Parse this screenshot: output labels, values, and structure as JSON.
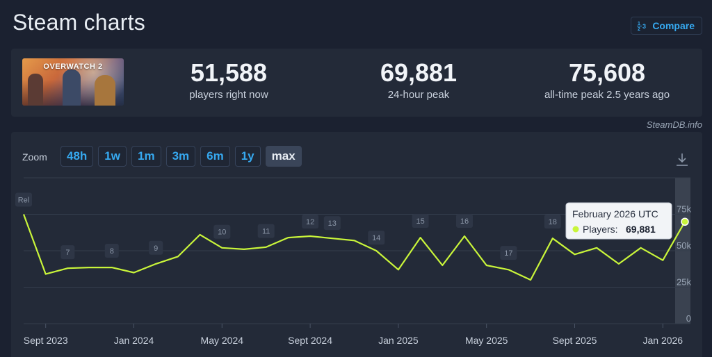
{
  "page": {
    "title": "Steam charts",
    "compare_label": "Compare",
    "compare_icon": "1/2/3 compare-icon"
  },
  "game": {
    "name": "OVERWATCH 2"
  },
  "stats": {
    "now": {
      "value": "51,588",
      "label": "players right now"
    },
    "peak24": {
      "value": "69,881",
      "label": "24-hour peak"
    },
    "alltime": {
      "value": "75,608",
      "label": "all-time peak 2.5 years ago"
    }
  },
  "watermark": "SteamDB.info",
  "zoom": {
    "label": "Zoom",
    "options": [
      "48h",
      "1w",
      "1m",
      "3m",
      "6m",
      "1y",
      "max"
    ],
    "active": "max"
  },
  "download_icon": "download-icon",
  "colors": {
    "line": "#c9f53a",
    "accent": "#36a9f0",
    "background": "#1b2130",
    "panel": "#232a38"
  },
  "tooltip": {
    "title": "February 2026 UTC",
    "series": "Players:",
    "value": "69,881"
  },
  "chart_data": {
    "type": "line",
    "x_tick_labels": [
      "Sept 2023",
      "Jan 2024",
      "May 2024",
      "Sept 2024",
      "Jan 2025",
      "May 2025",
      "Sept 2025",
      "Jan 2026"
    ],
    "y_tick_labels": [
      "0",
      "25k",
      "50k",
      "75k"
    ],
    "ylim": [
      0,
      100000
    ],
    "grid": true,
    "series": [
      {
        "values": [
          {
            "x": "2023-08",
            "y": 75000
          },
          {
            "x": "2023-09",
            "y": 34000
          },
          {
            "x": "2023-10",
            "y": 38000
          },
          {
            "x": "2023-11",
            "y": 38500
          },
          {
            "x": "2023-12",
            "y": 38500
          },
          {
            "x": "2024-01",
            "y": 35000
          },
          {
            "x": "2024-02",
            "y": 41000
          },
          {
            "x": "2024-03",
            "y": 46000
          },
          {
            "x": "2024-04",
            "y": 61000
          },
          {
            "x": "2024-05",
            "y": 52000
          },
          {
            "x": "2024-06",
            "y": 51000
          },
          {
            "x": "2024-07",
            "y": 52500
          },
          {
            "x": "2024-08",
            "y": 59000
          },
          {
            "x": "2024-09",
            "y": 60000
          },
          {
            "x": "2024-10",
            "y": 58500
          },
          {
            "x": "2024-11",
            "y": 57000
          },
          {
            "x": "2024-12",
            "y": 50000
          },
          {
            "x": "2025-01",
            "y": 37000
          },
          {
            "x": "2025-02",
            "y": 59000
          },
          {
            "x": "2025-03",
            "y": 40000
          },
          {
            "x": "2025-04",
            "y": 60000
          },
          {
            "x": "2025-05",
            "y": 40000
          },
          {
            "x": "2025-06",
            "y": 37000
          },
          {
            "x": "2025-07",
            "y": 30000
          },
          {
            "x": "2025-08",
            "y": 58500
          },
          {
            "x": "2025-09",
            "y": 47500
          },
          {
            "x": "2025-10",
            "y": 52000
          },
          {
            "x": "2025-11",
            "y": 41000
          },
          {
            "x": "2025-12",
            "y": 52000
          },
          {
            "x": "2026-01",
            "y": 43500
          },
          {
            "x": "2026-02",
            "y": 69881
          }
        ]
      }
    ],
    "annotations": [
      {
        "label": "Rel",
        "x": "2023-08",
        "y": 85000
      },
      {
        "label": "7",
        "x": "2023-10",
        "y": 49000
      },
      {
        "label": "8",
        "x": "2023-12",
        "y": 50000
      },
      {
        "label": "9",
        "x": "2024-02",
        "y": 52000
      },
      {
        "label": "10",
        "x": "2024-05",
        "y": 63000
      },
      {
        "label": "11",
        "x": "2024-07",
        "y": 63500
      },
      {
        "label": "12",
        "x": "2024-09",
        "y": 70000
      },
      {
        "label": "13",
        "x": "2024-10",
        "y": 69000
      },
      {
        "label": "14",
        "x": "2024-12",
        "y": 59000
      },
      {
        "label": "15",
        "x": "2025-02",
        "y": 70500
      },
      {
        "label": "16",
        "x": "2025-04",
        "y": 70500
      },
      {
        "label": "17",
        "x": "2025-06",
        "y": 48500
      },
      {
        "label": "18",
        "x": "2025-08",
        "y": 70000
      }
    ]
  }
}
